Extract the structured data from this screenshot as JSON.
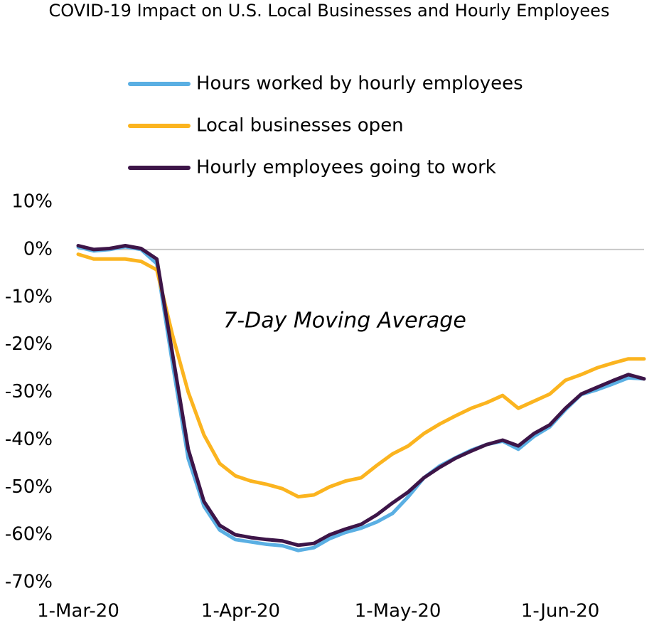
{
  "chart_data": {
    "type": "line",
    "title": "COVID-19 Impact on U.S. Local Businesses and Hourly Employees",
    "annotation": "7-Day Moving Average",
    "x": [
      0,
      3,
      6,
      9,
      12,
      15,
      18,
      21,
      24,
      27,
      30,
      33,
      36,
      39,
      42,
      45,
      48,
      51,
      54,
      57,
      60,
      63,
      66,
      69,
      72,
      75,
      78,
      81,
      84,
      87,
      90,
      93,
      96,
      99,
      102,
      105,
      108
    ],
    "xlim": [
      0,
      108
    ],
    "xticks": [
      {
        "value": 0,
        "label": "1-Mar-20"
      },
      {
        "value": 31,
        "label": "1-Apr-20"
      },
      {
        "value": 61,
        "label": "1-May-20"
      },
      {
        "value": 92,
        "label": "1-Jun-20"
      }
    ],
    "ylim": [
      -70,
      10
    ],
    "yticks": [
      {
        "value": 10,
        "label": "10%"
      },
      {
        "value": 0,
        "label": "0%"
      },
      {
        "value": -10,
        "label": "-10%"
      },
      {
        "value": -20,
        "label": "-20%"
      },
      {
        "value": -30,
        "label": "-30%"
      },
      {
        "value": -40,
        "label": "-40%"
      },
      {
        "value": -50,
        "label": "-50%"
      },
      {
        "value": -60,
        "label": "-60%"
      },
      {
        "value": -70,
        "label": "-70%"
      }
    ],
    "grid": false,
    "zero_line": true,
    "series": [
      {
        "name": "Hours worked by hourly employees",
        "color": "#5aafe3",
        "values": [
          0.5,
          -0.3,
          0,
          0.6,
          0,
          -3,
          -24,
          -44,
          -54,
          -59,
          -61,
          -61.5,
          -62,
          -62.3,
          -63.3,
          -62.7,
          -60.8,
          -59.5,
          -58.6,
          -57.3,
          -55.5,
          -52,
          -48,
          -45.5,
          -43.8,
          -42.2,
          -41,
          -40.3,
          -42,
          -39.3,
          -37.3,
          -33.7,
          -30.5,
          -29.5,
          -28.3,
          -27,
          -27.2
        ]
      },
      {
        "name": "Local businesses open",
        "color": "#fbb41f",
        "values": [
          -1,
          -2,
          -2,
          -2,
          -2.5,
          -4.3,
          -18,
          -30,
          -39,
          -45,
          -47.6,
          -48.7,
          -49.4,
          -50.3,
          -52,
          -51.6,
          -49.9,
          -48.7,
          -48,
          -45.4,
          -43,
          -41.3,
          -38.7,
          -36.7,
          -35,
          -33.4,
          -32.2,
          -30.7,
          -33.4,
          -31.9,
          -30.4,
          -27.5,
          -26.3,
          -24.9,
          -23.9,
          -23,
          -23
        ]
      },
      {
        "name": "Hourly employees going to work",
        "color": "#3d1548",
        "values": [
          0.8,
          0,
          0.2,
          0.8,
          0.2,
          -2,
          -22,
          -42,
          -53,
          -58,
          -60,
          -60.6,
          -61,
          -61.3,
          -62.2,
          -61.8,
          -60,
          -58.8,
          -57.8,
          -55.8,
          -53.3,
          -51,
          -48,
          -45.8,
          -43.9,
          -42.4,
          -41,
          -40.1,
          -41.3,
          -38.7,
          -36.9,
          -33.4,
          -30.4,
          -29,
          -27.6,
          -26.3,
          -27.2
        ]
      }
    ]
  }
}
